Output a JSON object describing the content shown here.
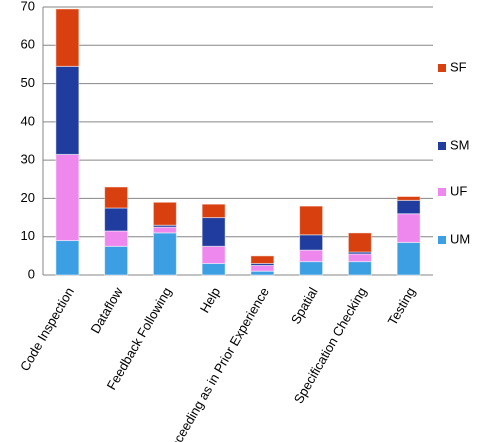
{
  "chart_data": {
    "type": "stacked-bar",
    "categories": [
      "Code Inspection",
      "Dataflow",
      "Feedback Following",
      "Help",
      "Proceeding as in Prior Experience",
      "Spatial",
      "Specification Checking",
      "Testing"
    ],
    "series": [
      {
        "name": "UM",
        "color": "#3d9fe3",
        "values": [
          9,
          7.5,
          11,
          3,
          1,
          3.5,
          3.5,
          8.5
        ]
      },
      {
        "name": "UF",
        "color": "#ee88ee",
        "values": [
          22.5,
          4,
          1.5,
          4.5,
          1.5,
          3,
          2,
          7.5
        ]
      },
      {
        "name": "SM",
        "color": "#1f3c9e",
        "values": [
          23,
          6,
          0.5,
          7.5,
          0.5,
          4,
          0.5,
          3.5
        ]
      },
      {
        "name": "SF",
        "color": "#d9400f",
        "values": [
          15,
          5.5,
          6,
          3.5,
          2,
          7.5,
          5,
          1
        ]
      }
    ],
    "ylim": [
      0,
      70
    ],
    "yticks": [
      0,
      10,
      20,
      30,
      40,
      50,
      60,
      70
    ],
    "grid": true,
    "legend": "right"
  }
}
